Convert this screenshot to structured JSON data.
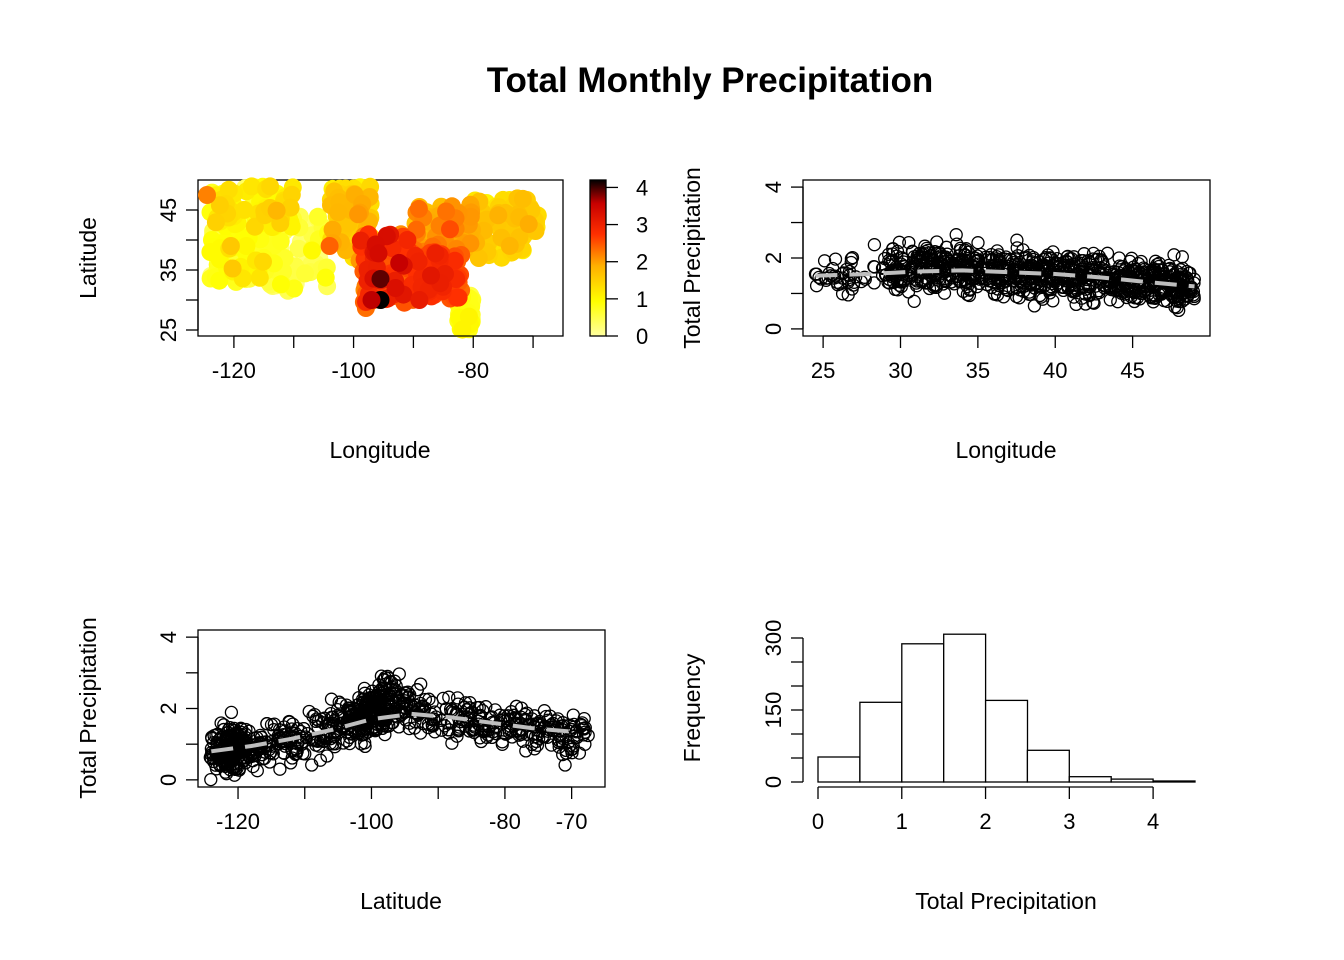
{
  "figure_title": "Total Monthly Precipitation",
  "colors": {
    "axis": "#000000",
    "smooth_line": "#bebebe",
    "heat_low": "#ffffa0",
    "heat_high": "#000000",
    "bar_fill": "#ffffff"
  },
  "chart_data": [
    {
      "type": "scatter",
      "panel": "map",
      "xlabel": "Longitude",
      "ylabel": "Latitude",
      "xlim": [
        -126,
        -65
      ],
      "ylim": [
        24,
        50
      ],
      "xticks": [
        -120,
        -100,
        -80
      ],
      "xminor": [
        -120,
        -110,
        -100,
        -90,
        -80,
        -70
      ],
      "yticks": [
        25,
        35,
        45
      ],
      "yminor": [
        25,
        30,
        35,
        40,
        45
      ],
      "color_scale": {
        "range": [
          0,
          4.2
        ],
        "ticks": [
          0,
          1,
          2,
          3,
          4
        ],
        "stops": [
          "#ffffa0",
          "#ffff00",
          "#ffb000",
          "#ff3000",
          "#c80000",
          "#000000"
        ]
      },
      "regions": [
        {
          "lon": [
            -124,
            -110
          ],
          "lat": [
            42,
            49
          ],
          "base": 1.0,
          "spread": 1.0
        },
        {
          "lon": [
            -124,
            -115
          ],
          "lat": [
            33,
            42
          ],
          "base": 0.7,
          "spread": 0.9
        },
        {
          "lon": [
            -115,
            -104
          ],
          "lat": [
            31,
            44
          ],
          "base": 0.5,
          "spread": 0.7
        },
        {
          "lon": [
            -104,
            -97
          ],
          "lat": [
            37,
            49
          ],
          "base": 1.4,
          "spread": 0.9
        },
        {
          "lon": [
            -99,
            -91
          ],
          "lat": [
            28,
            41
          ],
          "base": 2.6,
          "spread": 1.2
        },
        {
          "lon": [
            -91,
            -82
          ],
          "lat": [
            30,
            38
          ],
          "base": 2.6,
          "spread": 0.9
        },
        {
          "lon": [
            -90,
            -80
          ],
          "lat": [
            38,
            46
          ],
          "base": 1.9,
          "spread": 0.8
        },
        {
          "lon": [
            -80,
            -68
          ],
          "lat": [
            37,
            47
          ],
          "base": 1.5,
          "spread": 0.7
        },
        {
          "lon": [
            -83,
            -80
          ],
          "lat": [
            24,
            31
          ],
          "base": 0.7,
          "spread": 0.5
        }
      ],
      "highlights": [
        {
          "lon": -95.5,
          "lat": 30,
          "value": 4.2
        },
        {
          "lon": -95.5,
          "lat": 33.5,
          "value": 3.9
        },
        {
          "lon": -97,
          "lat": 30,
          "value": 3.6
        },
        {
          "lon": -93,
          "lat": 32,
          "value": 3.3
        },
        {
          "lon": -89,
          "lat": 30,
          "value": 3.1
        },
        {
          "lon": -91,
          "lat": 40,
          "value": 2.9
        },
        {
          "lon": -104,
          "lat": 39,
          "value": 2.4
        },
        {
          "lon": -124.5,
          "lat": 47.5,
          "value": 2.2
        },
        {
          "lon": -120.5,
          "lat": 39,
          "value": 1.6
        }
      ]
    },
    {
      "type": "scatter",
      "panel": "precip_vs_lat",
      "xlabel": "Longitude",
      "ylabel": "Total Precipitation",
      "xlim": [
        23.7,
        50
      ],
      "ylim": [
        -0.2,
        4.2
      ],
      "xticks": [
        25,
        30,
        35,
        40,
        45
      ],
      "yticks": [
        0,
        2,
        4
      ],
      "yminor": [
        0,
        1,
        2,
        3,
        4
      ],
      "x_range": [
        24.5,
        49
      ],
      "point_count": 900,
      "smooth": {
        "x": [
          24.5,
          28,
          31,
          34,
          37,
          40,
          43,
          46,
          49
        ],
        "y": [
          1.5,
          1.55,
          1.62,
          1.65,
          1.6,
          1.55,
          1.45,
          1.32,
          1.2
        ]
      }
    },
    {
      "type": "scatter",
      "panel": "precip_vs_lon",
      "xlabel": "Latitude",
      "ylabel": "Total Precipitation",
      "xlim": [
        -126,
        -65
      ],
      "ylim": [
        -0.2,
        4.2
      ],
      "xticks": [
        -120,
        -100,
        -80,
        -70
      ],
      "xminor": [
        -120,
        -110,
        -100,
        -90,
        -80,
        -70
      ],
      "yticks": [
        0,
        2,
        4
      ],
      "yminor": [
        0,
        1,
        2,
        3,
        4
      ],
      "x_range": [
        -124.5,
        -67.5
      ],
      "point_count": 900,
      "smooth": {
        "x": [
          -124,
          -118,
          -112,
          -106,
          -100,
          -94,
          -88,
          -82,
          -76,
          -70
        ],
        "y": [
          0.8,
          0.95,
          1.15,
          1.4,
          1.7,
          1.85,
          1.75,
          1.6,
          1.45,
          1.35
        ]
      }
    },
    {
      "type": "bar",
      "panel": "histogram",
      "xlabel": "Total Precipitation",
      "ylabel": "Frequency",
      "xlim": [
        -0.1,
        4.5
      ],
      "ylim": [
        -3,
        305
      ],
      "xticks": [
        0,
        1,
        2,
        3,
        4
      ],
      "yticks": [
        0,
        150,
        300
      ],
      "yminor": [
        0,
        50,
        100,
        150,
        200,
        250,
        300
      ],
      "bin_edges": [
        0,
        0.5,
        1,
        1.5,
        2,
        2.5,
        3,
        3.5,
        4,
        4.5
      ],
      "values": [
        52,
        166,
        288,
        308,
        170,
        66,
        11,
        6,
        2
      ]
    }
  ]
}
